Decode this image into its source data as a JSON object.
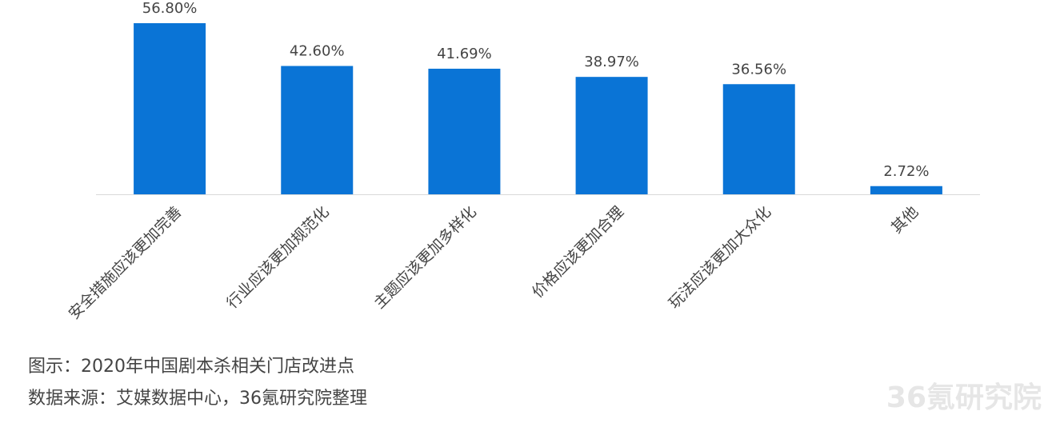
{
  "chart_data": {
    "type": "bar",
    "categories": [
      "安全措施应该更加完善",
      "行业应该更加规范化",
      "主题应该更加多样化",
      "价格应该更加合理",
      "玩法应该更加大众化",
      "其他"
    ],
    "values": [
      56.8,
      42.6,
      41.69,
      38.97,
      36.56,
      2.72
    ],
    "value_labels": [
      "56.80%",
      "42.60%",
      "41.69%",
      "38.97%",
      "36.56%",
      "2.72%"
    ],
    "color": "#0a74d6"
  },
  "caption": {
    "figure": "图示：2020年中国剧本杀相关门店改进点",
    "source": "数据来源：艾媒数据中心，36氪研究院整理"
  },
  "watermark": "36氪研究院"
}
